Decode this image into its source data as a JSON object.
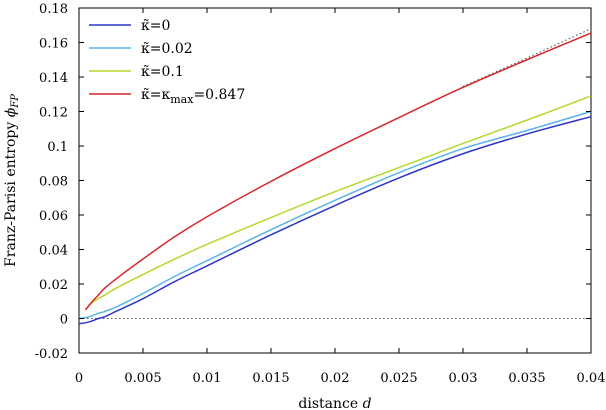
{
  "chart_data": {
    "type": "line",
    "xlabel": "distance",
    "xlabel_var": "d",
    "ylabel": "Franz-Parisi entropy",
    "ylabel_var": "ϕ",
    "ylabel_sub": "FP",
    "xlim": [
      0,
      0.04
    ],
    "ylim": [
      -0.02,
      0.18
    ],
    "xticks": [
      0,
      0.005,
      0.01,
      0.015,
      0.02,
      0.025,
      0.03,
      0.035,
      0.04
    ],
    "xtick_labels": [
      "0",
      "0.005",
      "0.01",
      "0.015",
      "0.02",
      "0.025",
      "0.03",
      "0.035",
      "0.04"
    ],
    "yticks": [
      -0.02,
      0,
      0.02,
      0.04,
      0.06,
      0.08,
      0.1,
      0.12,
      0.14,
      0.16,
      0.18
    ],
    "ytick_labels": [
      "-0.02",
      "0",
      "0.02",
      "0.04",
      "0.06",
      "0.08",
      "0.1",
      "0.12",
      "0.14",
      "0.16",
      "0.18"
    ],
    "grid": false,
    "legend_position": "top-left",
    "series": [
      {
        "name": "κ̃=0",
        "color": "#2b35c8",
        "x": [
          0,
          0.0005,
          0.001,
          0.0015,
          0.002,
          0.003,
          0.005,
          0.0075,
          0.01,
          0.015,
          0.02,
          0.025,
          0.03,
          0.035,
          0.04
        ],
        "y": [
          -0.003,
          -0.0025,
          -0.0015,
          0.0,
          0.001,
          0.0045,
          0.0115,
          0.0215,
          0.0305,
          0.0485,
          0.0655,
          0.0815,
          0.0955,
          0.107,
          0.117
        ]
      },
      {
        "name": "κ̃=0.02",
        "color": "#5ab4e6",
        "x": [
          0,
          0.0005,
          0.001,
          0.0015,
          0.002,
          0.003,
          0.005,
          0.0075,
          0.01,
          0.015,
          0.02,
          0.025,
          0.03,
          0.035,
          0.04
        ],
        "y": [
          0.0,
          0.0005,
          0.0015,
          0.003,
          0.004,
          0.007,
          0.0145,
          0.0245,
          0.0335,
          0.0515,
          0.0685,
          0.0845,
          0.0985,
          0.109,
          0.12
        ]
      },
      {
        "name": "κ̃=0.1",
        "color": "#b4d92c",
        "x": [
          0.0005,
          0.001,
          0.0015,
          0.002,
          0.003,
          0.005,
          0.0075,
          0.01,
          0.015,
          0.02,
          0.025,
          0.03,
          0.035,
          0.04
        ],
        "y": [
          0.005,
          0.009,
          0.0115,
          0.0135,
          0.018,
          0.0255,
          0.0345,
          0.043,
          0.0585,
          0.0735,
          0.0875,
          0.1015,
          0.115,
          0.129
        ]
      },
      {
        "name": "κ̃=κmax=0.847",
        "name_parts": [
          "κ̃=κ",
          "max",
          "=0.847"
        ],
        "color": "#d62728",
        "x": [
          0.0005,
          0.001,
          0.0015,
          0.002,
          0.003,
          0.005,
          0.0075,
          0.01,
          0.015,
          0.02,
          0.025,
          0.03,
          0.035,
          0.04
        ],
        "y": [
          0.005,
          0.0095,
          0.0135,
          0.0175,
          0.0235,
          0.0345,
          0.0475,
          0.059,
          0.0795,
          0.0985,
          0.1165,
          0.134,
          0.15,
          0.1655
        ]
      }
    ],
    "reference_lines": [
      {
        "style": "dotted",
        "color": "#555555",
        "x": [
          0,
          0.04
        ],
        "y": [
          0,
          0
        ]
      },
      {
        "style": "dotted",
        "color": "#555555",
        "x": [
          0.03,
          0.035,
          0.04
        ],
        "y": [
          0.1345,
          0.151,
          0.168
        ]
      }
    ]
  }
}
